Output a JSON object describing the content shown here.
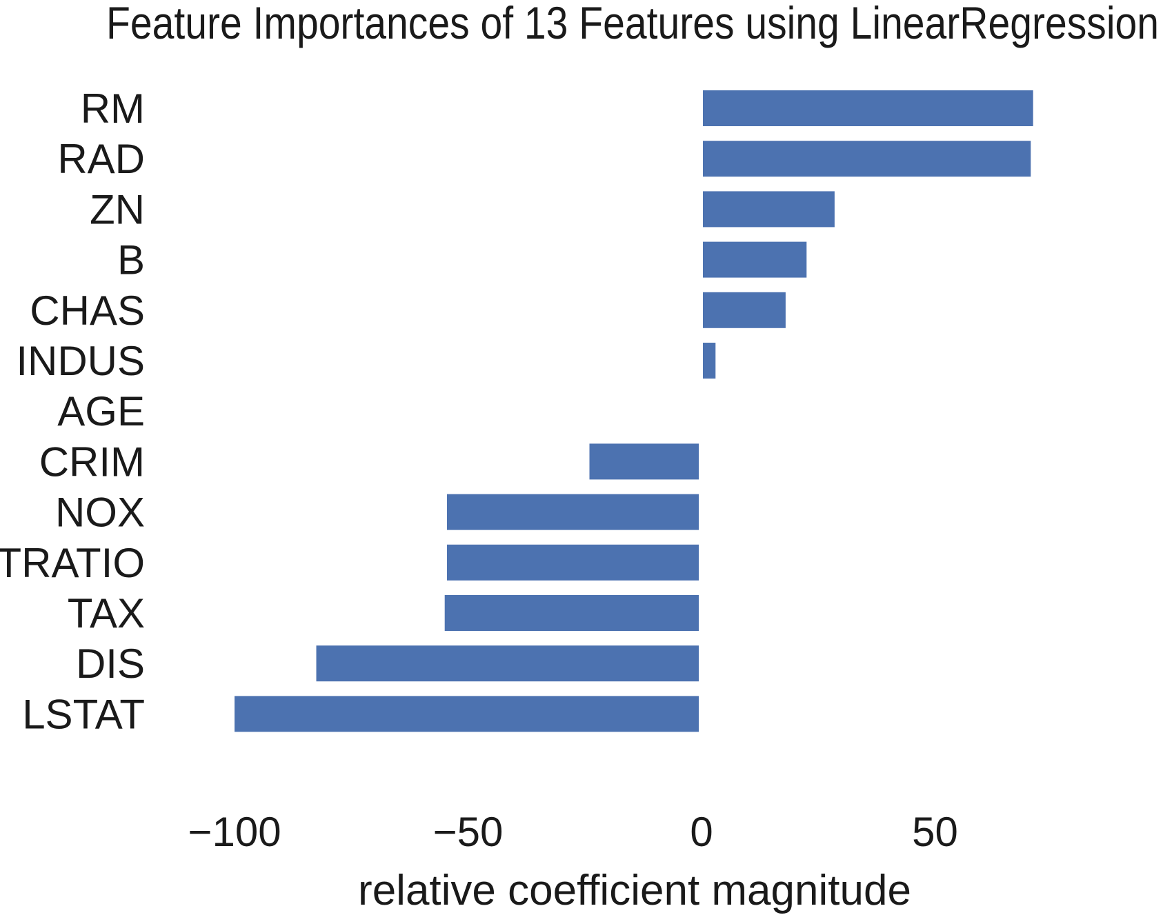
{
  "chart_data": {
    "type": "bar",
    "orientation": "horizontal",
    "title": "Feature Importances of 13 Features using LinearRegression",
    "xlabel": "relative coefficient magnitude",
    "ylabel": "",
    "categories": [
      "RM",
      "RAD",
      "ZN",
      "B",
      "CHAS",
      "INDUS",
      "AGE",
      "CRIM",
      "NOX",
      "PTRATIO",
      "TAX",
      "DIS",
      "LSTAT"
    ],
    "values": [
      71,
      70.5,
      28.5,
      22.5,
      18,
      3,
      0,
      -24,
      -54.5,
      -54.5,
      -55,
      -82.5,
      -100
    ],
    "xlim": [
      -110,
      80
    ],
    "xticks": [
      -100,
      -50,
      0,
      50
    ],
    "xtick_labels": [
      "−100",
      "−50",
      "0",
      "50"
    ],
    "grid": false,
    "legend": "none",
    "bar_color": "#4c72b0"
  }
}
